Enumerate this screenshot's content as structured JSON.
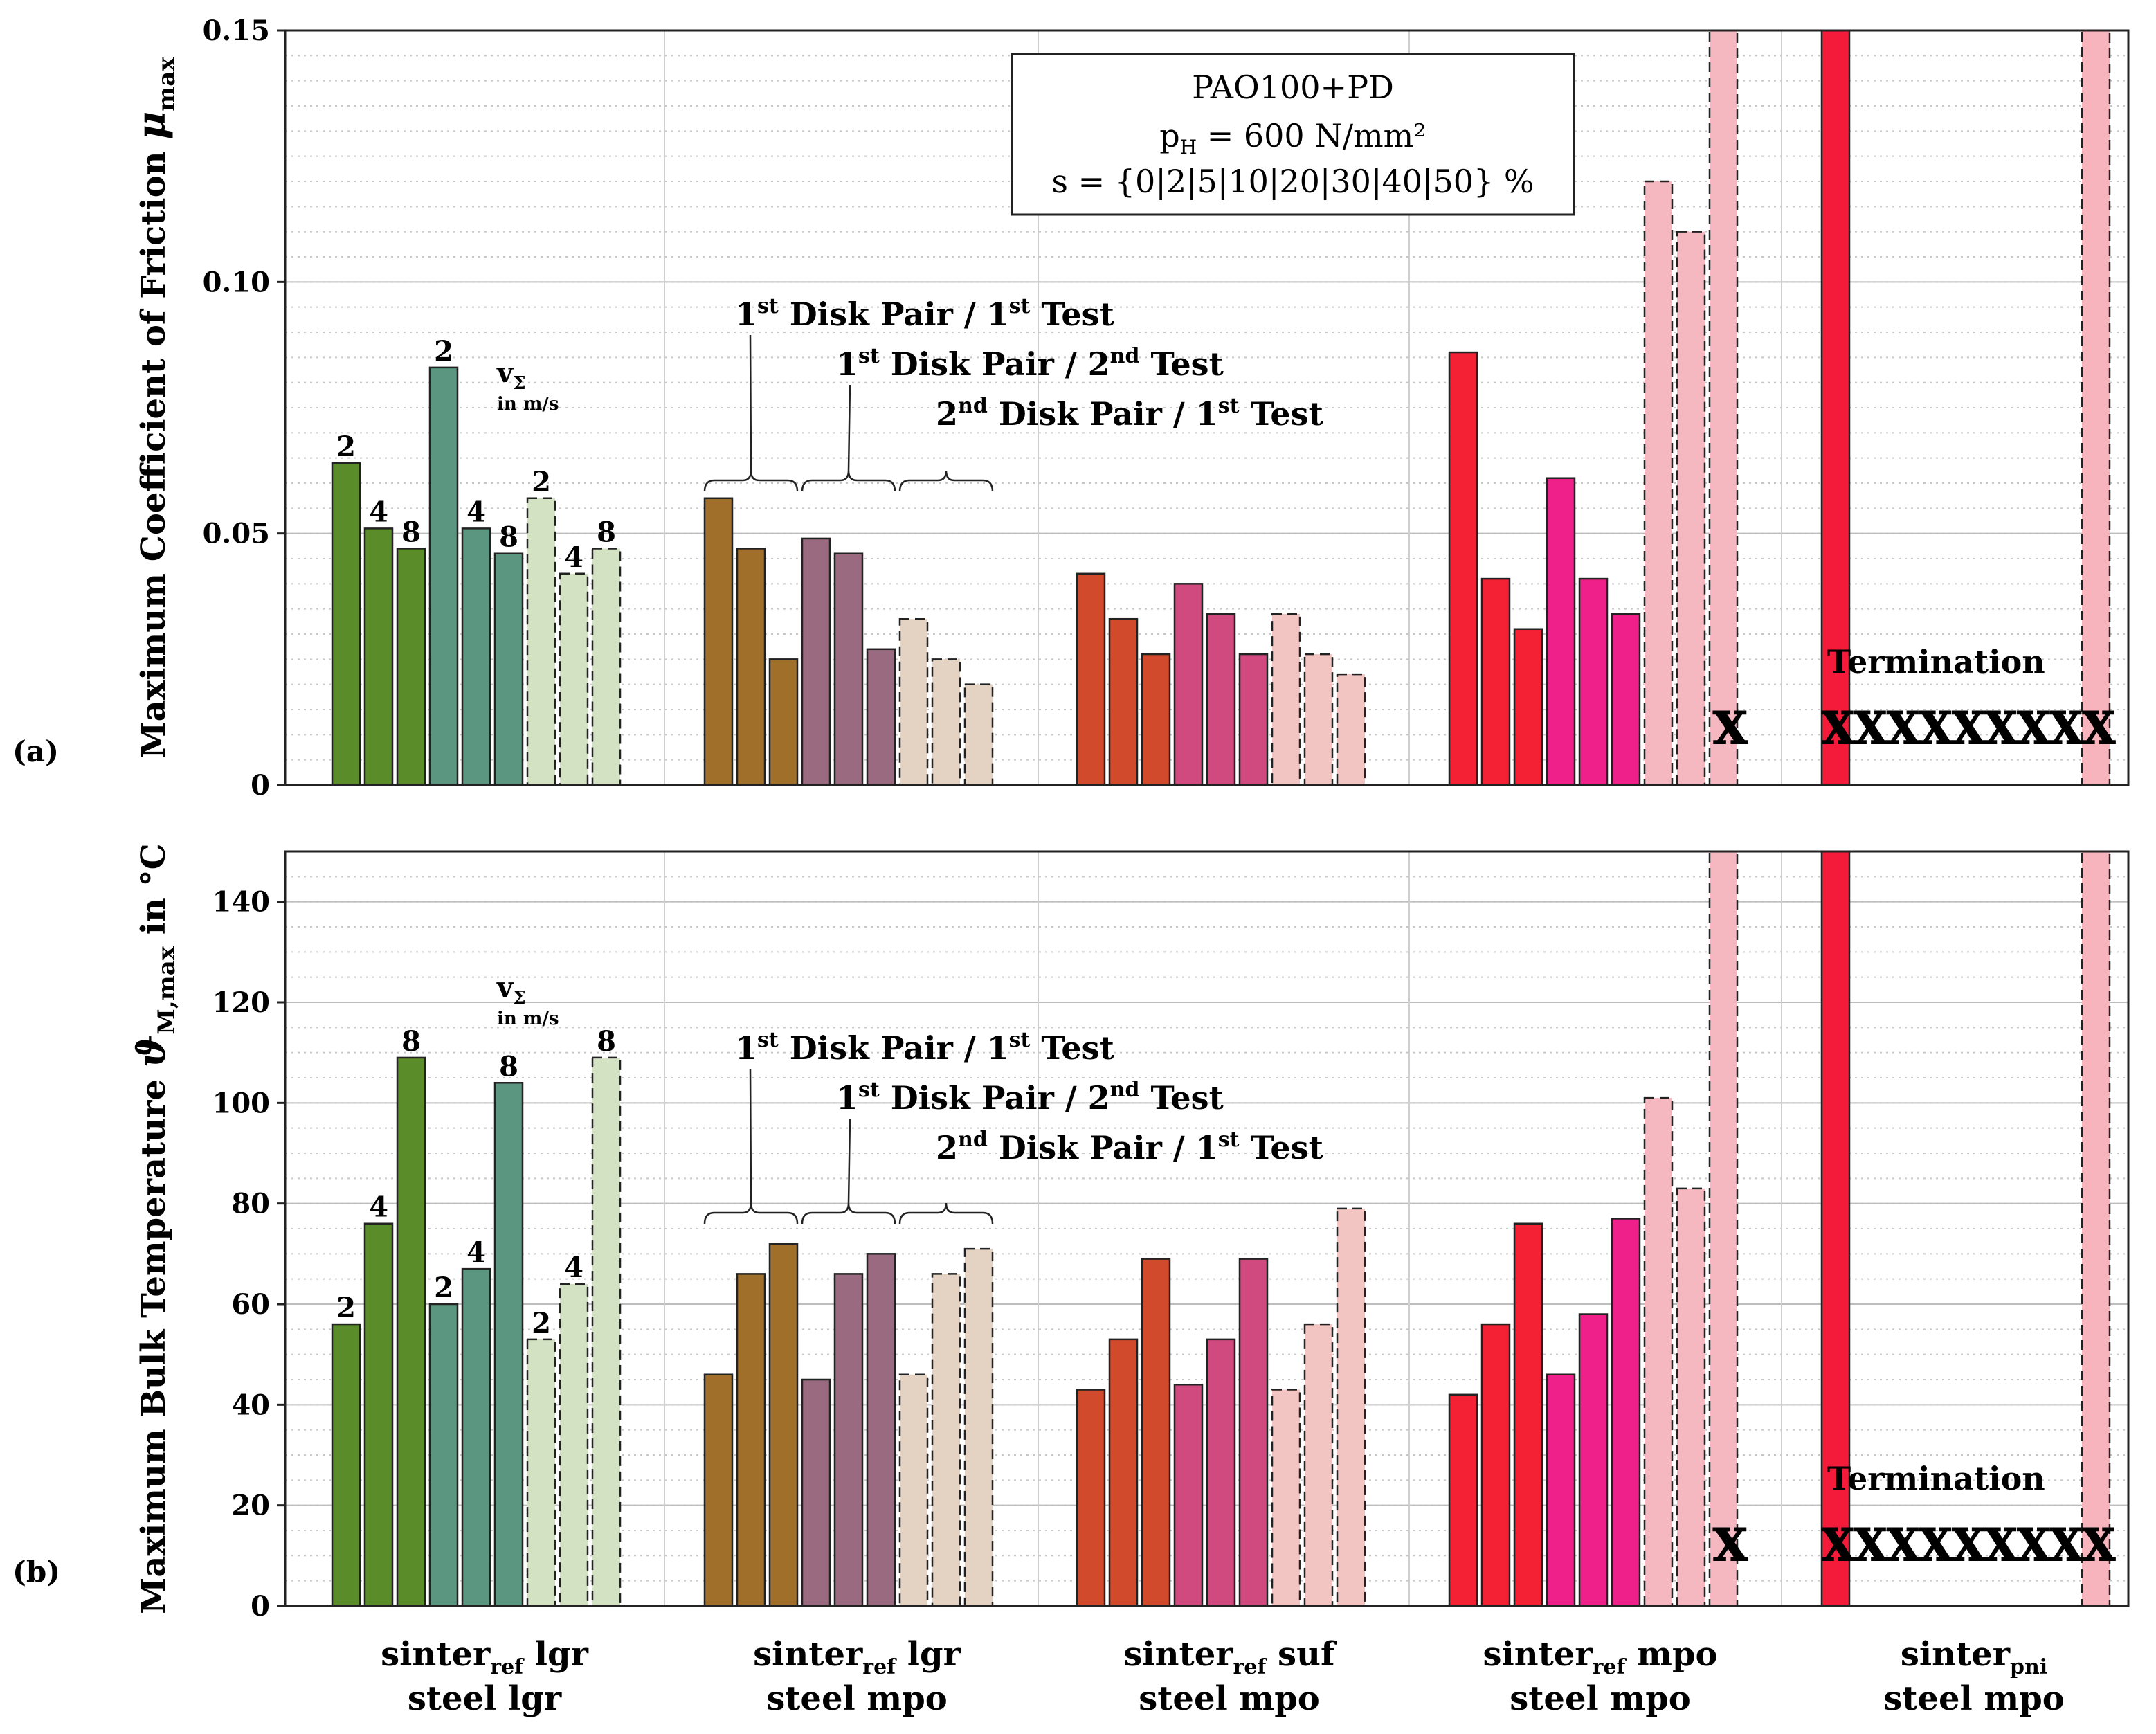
{
  "colors": {
    "lgr_lgr_1": "#5a8c2a",
    "lgr_lgr_2": "#5a9680",
    "lgr_lgr_3": "#d4e2c4",
    "lgr_mpo_1": "#a0702a",
    "lgr_mpo_2": "#9a6a80",
    "lgr_mpo_3": "#e4d2c2",
    "suf_1": "#d24a2c",
    "suf_2": "#d04a80",
    "suf_3": "#f2c4c2",
    "mpo_1": "#f42034",
    "mpo_2": "#f0208a",
    "mpo_3": "#f6b8c0",
    "pni_1": "#f41a3a",
    "pni_3": "#f8b4bc"
  },
  "chart_data": [
    {
      "id": "a",
      "type": "bar",
      "panel_label": "(a)",
      "ylabel_main": "Maximum Coefficient of Friction ",
      "ylabel_symbol": "μ",
      "ylabel_sub": "max",
      "ylim": [
        0,
        0.15
      ],
      "yticks": [
        "0",
        "0.05",
        "0.10",
        "0.15"
      ],
      "ytick_values": [
        0,
        0.05,
        0.1,
        0.15
      ],
      "legend": {
        "line1": "PAO100+PD",
        "line2_p": "p",
        "line2_sub": "H",
        "line2_rest": " = 600 N/mm²",
        "line3": "s = {0|2|5|10|20|30|40|50} %"
      },
      "vsigma": {
        "v": "v",
        "sub": "Σ",
        "unit": "in m/s"
      },
      "brackets": [
        {
          "label": "1",
          "sup": "st",
          "mid": " Disk Pair / 1",
          "sup2": "st",
          "end": " Test"
        },
        {
          "label": "1",
          "sup": "st",
          "mid": " Disk Pair / 2",
          "sup2": "nd",
          "end": " Test"
        },
        {
          "label": "2",
          "sup": "nd",
          "mid": " Disk Pair / 1",
          "sup2": "st",
          "end": " Test"
        }
      ],
      "termination_label": "Termination",
      "x_marks_group4": "X",
      "x_marks_group5": "XXXXXXXXX",
      "series": [
        {
          "group": "sinter_ref lgr / steel lgr",
          "values": [
            0.064,
            0.051,
            0.047,
            0.083,
            0.051,
            0.046,
            0.057,
            0.042,
            0.047
          ],
          "labels": [
            "2",
            "4",
            "8",
            "2",
            "4",
            "8",
            "2",
            "4",
            "8"
          ]
        },
        {
          "group": "sinter_ref lgr / steel mpo",
          "values": [
            0.057,
            0.047,
            0.025,
            0.049,
            0.046,
            0.027,
            0.033,
            0.025,
            0.02
          ]
        },
        {
          "group": "sinter_ref suf / steel mpo",
          "values": [
            0.042,
            0.033,
            0.026,
            0.04,
            0.034,
            0.026,
            0.034,
            0.026,
            0.022
          ]
        },
        {
          "group": "sinter_ref mpo / steel mpo",
          "values": [
            0.086,
            0.041,
            0.031,
            0.061,
            0.041,
            0.034,
            0.12,
            0.11,
            0.15
          ]
        },
        {
          "group": "sinter_pni / steel mpo",
          "values": [
            0.15,
            0,
            0,
            0,
            0,
            0,
            0,
            0,
            0.15
          ]
        }
      ]
    },
    {
      "id": "b",
      "type": "bar",
      "panel_label": "(b)",
      "ylabel_main": "Maximum Bulk Temperature ",
      "ylabel_symbol": "ϑ",
      "ylabel_sub": "M,max",
      "ylabel_tail": " in °C",
      "ylim": [
        0,
        150
      ],
      "yticks": [
        "0",
        "20",
        "40",
        "60",
        "80",
        "100",
        "120",
        "140"
      ],
      "ytick_values": [
        0,
        20,
        40,
        60,
        80,
        100,
        120,
        140
      ],
      "vsigma": {
        "v": "v",
        "sub": "Σ",
        "unit": "in m/s"
      },
      "brackets": [
        {
          "label": "1",
          "sup": "st",
          "mid": " Disk Pair / 1",
          "sup2": "st",
          "end": " Test"
        },
        {
          "label": "1",
          "sup": "st",
          "mid": " Disk Pair / 2",
          "sup2": "nd",
          "end": " Test"
        },
        {
          "label": "2",
          "sup": "nd",
          "mid": " Disk Pair / 1",
          "sup2": "st",
          "end": " Test"
        }
      ],
      "termination_label": "Termination",
      "x_marks_group4": "X",
      "x_marks_group5": "XXXXXXXXX",
      "series": [
        {
          "group": "sinter_ref lgr / steel lgr",
          "values": [
            56,
            76,
            109,
            60,
            67,
            104,
            53,
            64,
            109
          ],
          "labels": [
            "2",
            "4",
            "8",
            "2",
            "4",
            "8",
            "2",
            "4",
            "8"
          ]
        },
        {
          "group": "sinter_ref lgr / steel mpo",
          "values": [
            46,
            66,
            72,
            45,
            66,
            70,
            46,
            66,
            71
          ]
        },
        {
          "group": "sinter_ref suf / steel mpo",
          "values": [
            43,
            53,
            69,
            44,
            53,
            69,
            43,
            56,
            79
          ]
        },
        {
          "group": "sinter_ref mpo / steel mpo",
          "values": [
            42,
            56,
            76,
            46,
            58,
            77,
            101,
            83,
            150
          ]
        },
        {
          "group": "sinter_pni / steel mpo",
          "values": [
            150,
            0,
            0,
            0,
            0,
            0,
            0,
            0,
            150
          ]
        }
      ]
    }
  ],
  "group_labels": [
    {
      "l1": "sinter",
      "sub": "ref",
      "l1b": " lgr",
      "l2": "steel lgr"
    },
    {
      "l1": "sinter",
      "sub": "ref",
      "l1b": " lgr",
      "l2": "steel mpo"
    },
    {
      "l1": "sinter",
      "sub": "ref",
      "l1b": " suf",
      "l2": "steel mpo"
    },
    {
      "l1": "sinter",
      "sub": "ref",
      "l1b": " mpo",
      "l2": "steel mpo"
    },
    {
      "l1": "sinter",
      "sub": "pni",
      "l1b": "",
      "l2": "steel mpo"
    }
  ]
}
